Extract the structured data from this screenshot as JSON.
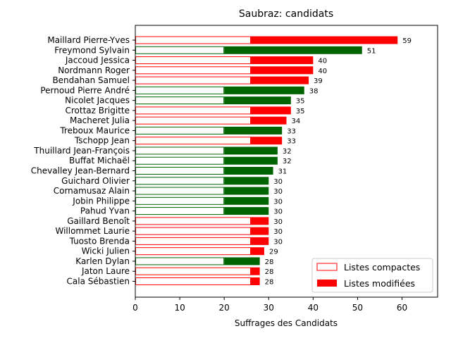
{
  "chart_data": {
    "type": "bar",
    "orientation": "horizontal",
    "stacked": true,
    "title": "Saubraz: candidats",
    "xlabel": "Suffrages des Candidats",
    "ylabel": "",
    "xlim": [
      0,
      68
    ],
    "xticks": [
      0,
      10,
      20,
      30,
      40,
      50,
      60
    ],
    "grid": false,
    "legend_position": "lower-right",
    "legend": [
      {
        "label": "Listes compactes",
        "style": "outline",
        "color": "#ff0000"
      },
      {
        "label": "Listes modifiées",
        "style": "filled",
        "color": "#ff0000"
      }
    ],
    "colors": {
      "red": "#ff0000",
      "green": "#006400"
    },
    "candidates": [
      {
        "name": "Maillard Pierre-Yves",
        "compact": 26,
        "total": 59,
        "color": "red"
      },
      {
        "name": "Freymond Sylvain",
        "compact": 20,
        "total": 51,
        "color": "green"
      },
      {
        "name": "Jaccoud Jessica",
        "compact": 26,
        "total": 40,
        "color": "red"
      },
      {
        "name": "Nordmann Roger",
        "compact": 26,
        "total": 40,
        "color": "red"
      },
      {
        "name": "Bendahan Samuel",
        "compact": 26,
        "total": 39,
        "color": "red"
      },
      {
        "name": "Pernoud Pierre André",
        "compact": 20,
        "total": 38,
        "color": "green"
      },
      {
        "name": "Nicolet Jacques",
        "compact": 20,
        "total": 35,
        "color": "green"
      },
      {
        "name": "Crottaz Brigitte",
        "compact": 26,
        "total": 35,
        "color": "red"
      },
      {
        "name": "Macheret Julia",
        "compact": 26,
        "total": 34,
        "color": "red"
      },
      {
        "name": "Treboux Maurice",
        "compact": 20,
        "total": 33,
        "color": "green"
      },
      {
        "name": "Tschopp Jean",
        "compact": 26,
        "total": 33,
        "color": "red"
      },
      {
        "name": "Thuillard Jean-François",
        "compact": 20,
        "total": 32,
        "color": "green"
      },
      {
        "name": "Buffat Michaël",
        "compact": 20,
        "total": 32,
        "color": "green"
      },
      {
        "name": "Chevalley Jean-Bernard",
        "compact": 20,
        "total": 31,
        "color": "green"
      },
      {
        "name": "Guichard Olivier",
        "compact": 20,
        "total": 30,
        "color": "green"
      },
      {
        "name": "Cornamusaz Alain",
        "compact": 20,
        "total": 30,
        "color": "green"
      },
      {
        "name": "Jobin Philippe",
        "compact": 20,
        "total": 30,
        "color": "green"
      },
      {
        "name": "Pahud Yvan",
        "compact": 20,
        "total": 30,
        "color": "green"
      },
      {
        "name": "Gaillard Benoît",
        "compact": 26,
        "total": 30,
        "color": "red"
      },
      {
        "name": "Willommet Laurie",
        "compact": 26,
        "total": 30,
        "color": "red"
      },
      {
        "name": "Tuosto Brenda",
        "compact": 26,
        "total": 30,
        "color": "red"
      },
      {
        "name": "Wicki Julien",
        "compact": 26,
        "total": 29,
        "color": "red"
      },
      {
        "name": "Karlen Dylan",
        "compact": 20,
        "total": 28,
        "color": "green"
      },
      {
        "name": "Jaton Laure",
        "compact": 26,
        "total": 28,
        "color": "red"
      },
      {
        "name": "Cala Sébastien",
        "compact": 26,
        "total": 28,
        "color": "red"
      }
    ]
  }
}
